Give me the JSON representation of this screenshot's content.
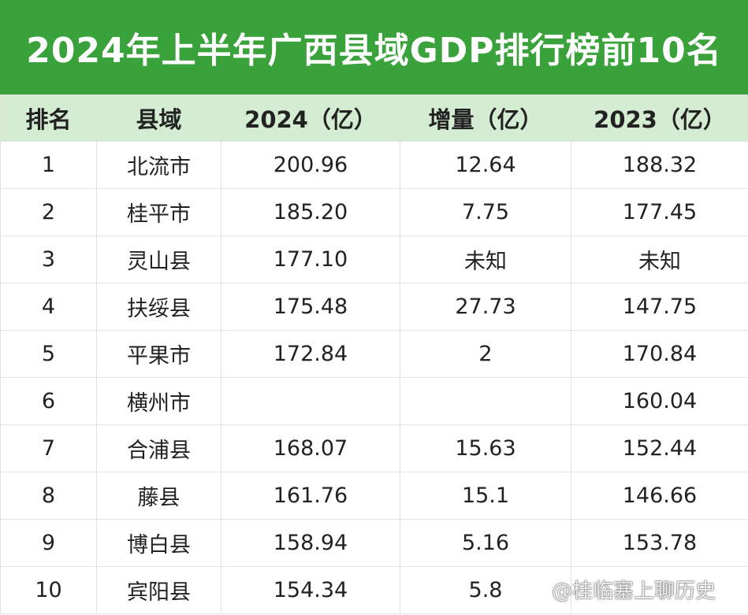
{
  "title": "2024年上半年广西县域GDP排行榜前10名",
  "watermark": "@桂临塞上聊历史",
  "colors": {
    "title_bg": "#3aa23a",
    "header_bg": "#d3ecd2"
  },
  "chart_data": {
    "type": "table",
    "title": "2024年上半年广西县域GDP排行榜前10名",
    "columns": [
      "排名",
      "县域",
      "2024（亿）",
      "增量（亿）",
      "2023（亿）"
    ],
    "rows": [
      [
        "1",
        "北流市",
        "200.96",
        "12.64",
        "188.32"
      ],
      [
        "2",
        "桂平市",
        "185.20",
        "7.75",
        "177.45"
      ],
      [
        "3",
        "灵山县",
        "177.10",
        "未知",
        "未知"
      ],
      [
        "4",
        "扶绥县",
        "175.48",
        "27.73",
        "147.75"
      ],
      [
        "5",
        "平果市",
        "172.84",
        "2",
        "170.84"
      ],
      [
        "6",
        "横州市",
        "",
        "",
        "160.04"
      ],
      [
        "7",
        "合浦县",
        "168.07",
        "15.63",
        "152.44"
      ],
      [
        "8",
        "藤县",
        "161.76",
        "15.1",
        "146.66"
      ],
      [
        "9",
        "博白县",
        "158.94",
        "5.16",
        "153.78"
      ],
      [
        "10",
        "宾阳县",
        "154.34",
        "5.8",
        ""
      ]
    ]
  }
}
